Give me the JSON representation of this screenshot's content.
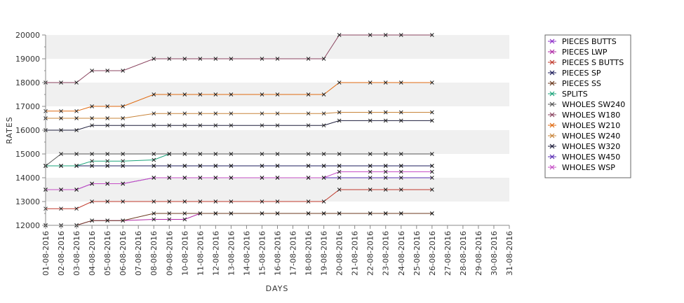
{
  "chart_data": {
    "type": "line",
    "xlabel": "DAYS",
    "ylabel": "RATES",
    "ylim": [
      12000,
      20000
    ],
    "yticks": [
      12000,
      13000,
      14000,
      15000,
      16000,
      17000,
      18000,
      19000,
      20000
    ],
    "ytick_labels": [
      "12000",
      "13000",
      "14000",
      "15000",
      "16000",
      "17000",
      "18000",
      "19000",
      "20000"
    ],
    "x_categories": [
      "01-08-2016",
      "02-08-2016",
      "03-08-2016",
      "04-08-2016",
      "05-08-2016",
      "06-08-2016",
      "07-08-2016",
      "08-08-2016",
      "09-08-2016",
      "10-08-2016",
      "11-08-2016",
      "12-08-2016",
      "13-08-2016",
      "14-08-2016",
      "15-08-2016",
      "16-08-2016",
      "17-08-2016",
      "18-08-2016",
      "19-08-2016",
      "20-08-2016",
      "21-08-2016",
      "22-08-2016",
      "23-08-2016",
      "24-08-2016",
      "25-08-2016",
      "26-08-2016",
      "27-08-2016",
      "28-08-2016",
      "29-08-2016",
      "30-08-2016",
      "31-08-2016"
    ],
    "grid": "alternating horizontal bands",
    "legend_position": "right",
    "series": [
      {
        "name": "PIECES BUTTS",
        "color": "#8e2fc9",
        "x": [
          "01-08-2016",
          "02-08-2016",
          "03-08-2016",
          "04-08-2016",
          "05-08-2016",
          "06-08-2016",
          "08-08-2016",
          "09-08-2016",
          "10-08-2016",
          "11-08-2016",
          "12-08-2016",
          "13-08-2016",
          "15-08-2016",
          "16-08-2016",
          "18-08-2016",
          "19-08-2016",
          "20-08-2016",
          "22-08-2016",
          "23-08-2016",
          "24-08-2016",
          "26-08-2016"
        ],
        "values": [
          14500,
          14500,
          14500,
          14500,
          14500,
          14500,
          14500,
          14500,
          14500,
          14500,
          14500,
          14500,
          14500,
          14500,
          14500,
          14500,
          14500,
          14500,
          14500,
          14500,
          14500
        ]
      },
      {
        "name": "PIECES LWP",
        "color": "#b02aa6",
        "x": [
          "01-08-2016",
          "02-08-2016",
          "03-08-2016",
          "04-08-2016",
          "05-08-2016",
          "06-08-2016",
          "08-08-2016",
          "09-08-2016",
          "10-08-2016",
          "11-08-2016",
          "12-08-2016",
          "13-08-2016",
          "15-08-2016",
          "16-08-2016",
          "18-08-2016",
          "19-08-2016",
          "20-08-2016",
          "22-08-2016",
          "23-08-2016",
          "24-08-2016",
          "26-08-2016"
        ],
        "values": [
          12000,
          12000,
          12000,
          12200,
          12200,
          12200,
          12250,
          12250,
          12250,
          12500,
          12500,
          12500,
          12500,
          12500,
          12500,
          12500,
          12500,
          12500,
          12500,
          12500,
          12500
        ]
      },
      {
        "name": "PIECES S BUTTS",
        "color": "#c0392b",
        "x": [
          "01-08-2016",
          "02-08-2016",
          "03-08-2016",
          "04-08-2016",
          "05-08-2016",
          "06-08-2016",
          "08-08-2016",
          "09-08-2016",
          "10-08-2016",
          "11-08-2016",
          "12-08-2016",
          "13-08-2016",
          "15-08-2016",
          "16-08-2016",
          "18-08-2016",
          "19-08-2016",
          "20-08-2016",
          "22-08-2016",
          "23-08-2016",
          "24-08-2016",
          "26-08-2016"
        ],
        "values": [
          12700,
          12700,
          12700,
          13000,
          13000,
          13000,
          13000,
          13000,
          13000,
          13000,
          13000,
          13000,
          13000,
          13000,
          13000,
          13000,
          13500,
          13500,
          13500,
          13500,
          13500
        ]
      },
      {
        "name": "PIECES SP",
        "color": "#1e1e5c",
        "x": [
          "01-08-2016",
          "02-08-2016",
          "03-08-2016",
          "04-08-2016",
          "05-08-2016",
          "06-08-2016",
          "08-08-2016",
          "09-08-2016",
          "10-08-2016",
          "11-08-2016",
          "12-08-2016",
          "13-08-2016",
          "15-08-2016",
          "16-08-2016",
          "18-08-2016",
          "19-08-2016",
          "20-08-2016",
          "22-08-2016",
          "23-08-2016",
          "24-08-2016",
          "26-08-2016"
        ],
        "values": [
          14500,
          14500,
          14500,
          14500,
          14500,
          14500,
          14500,
          14500,
          14500,
          14500,
          14500,
          14500,
          14500,
          14500,
          14500,
          14500,
          14500,
          14500,
          14500,
          14500,
          14500
        ]
      },
      {
        "name": "PIECES SS",
        "color": "#6b3a1f",
        "x": [
          "01-08-2016",
          "02-08-2016",
          "03-08-2016",
          "04-08-2016",
          "05-08-2016",
          "06-08-2016",
          "08-08-2016",
          "09-08-2016",
          "10-08-2016",
          "11-08-2016",
          "12-08-2016",
          "13-08-2016",
          "15-08-2016",
          "16-08-2016",
          "18-08-2016",
          "19-08-2016",
          "20-08-2016",
          "22-08-2016",
          "23-08-2016",
          "24-08-2016",
          "26-08-2016"
        ],
        "values": [
          12000,
          12000,
          12000,
          12200,
          12200,
          12200,
          12500,
          12500,
          12500,
          12500,
          12500,
          12500,
          12500,
          12500,
          12500,
          12500,
          12500,
          12500,
          12500,
          12500,
          12500
        ]
      },
      {
        "name": "SPLITS",
        "color": "#1aa37a",
        "x": [
          "01-08-2016",
          "02-08-2016",
          "03-08-2016",
          "04-08-2016",
          "05-08-2016",
          "06-08-2016",
          "08-08-2016",
          "09-08-2016"
        ],
        "values": [
          14500,
          14500,
          14500,
          14700,
          14700,
          14700,
          14750,
          15000
        ]
      },
      {
        "name": "WHOLES SW240",
        "color": "#555555",
        "x": [
          "01-08-2016",
          "02-08-2016",
          "03-08-2016",
          "04-08-2016",
          "05-08-2016",
          "06-08-2016",
          "08-08-2016",
          "09-08-2016",
          "10-08-2016",
          "11-08-2016",
          "12-08-2016",
          "13-08-2016",
          "15-08-2016",
          "16-08-2016",
          "18-08-2016",
          "19-08-2016",
          "20-08-2016",
          "22-08-2016",
          "23-08-2016",
          "24-08-2016",
          "26-08-2016"
        ],
        "values": [
          14500,
          15000,
          15000,
          15000,
          15000,
          15000,
          15000,
          15000,
          15000,
          15000,
          15000,
          15000,
          15000,
          15000,
          15000,
          15000,
          15000,
          15000,
          15000,
          15000,
          15000
        ]
      },
      {
        "name": "WHOLES W180",
        "color": "#8b4560",
        "x": [
          "01-08-2016",
          "02-08-2016",
          "03-08-2016",
          "04-08-2016",
          "05-08-2016",
          "06-08-2016",
          "08-08-2016",
          "09-08-2016",
          "10-08-2016",
          "11-08-2016",
          "12-08-2016",
          "13-08-2016",
          "15-08-2016",
          "16-08-2016",
          "18-08-2016",
          "19-08-2016",
          "20-08-2016",
          "22-08-2016",
          "23-08-2016",
          "24-08-2016",
          "26-08-2016"
        ],
        "values": [
          18000,
          18000,
          18000,
          18500,
          18500,
          18500,
          19000,
          19000,
          19000,
          19000,
          19000,
          19000,
          19000,
          19000,
          19000,
          19000,
          20000,
          20000,
          20000,
          20000,
          20000
        ]
      },
      {
        "name": "WHOLES W210",
        "color": "#e06a10",
        "x": [
          "01-08-2016",
          "02-08-2016",
          "03-08-2016",
          "04-08-2016",
          "05-08-2016",
          "06-08-2016",
          "08-08-2016",
          "09-08-2016",
          "10-08-2016",
          "11-08-2016",
          "12-08-2016",
          "13-08-2016",
          "15-08-2016",
          "16-08-2016",
          "18-08-2016",
          "19-08-2016",
          "20-08-2016",
          "22-08-2016",
          "23-08-2016",
          "24-08-2016",
          "26-08-2016"
        ],
        "values": [
          16800,
          16800,
          16800,
          17000,
          17000,
          17000,
          17500,
          17500,
          17500,
          17500,
          17500,
          17500,
          17500,
          17500,
          17500,
          17500,
          18000,
          18000,
          18000,
          18000,
          18000
        ]
      },
      {
        "name": "WHOLES W240",
        "color": "#c8843a",
        "x": [
          "01-08-2016",
          "02-08-2016",
          "03-08-2016",
          "04-08-2016",
          "05-08-2016",
          "06-08-2016",
          "08-08-2016",
          "09-08-2016",
          "10-08-2016",
          "11-08-2016",
          "12-08-2016",
          "13-08-2016",
          "15-08-2016",
          "16-08-2016",
          "18-08-2016",
          "19-08-2016",
          "20-08-2016",
          "22-08-2016",
          "23-08-2016",
          "24-08-2016",
          "26-08-2016"
        ],
        "values": [
          16500,
          16500,
          16500,
          16500,
          16500,
          16500,
          16700,
          16700,
          16700,
          16700,
          16700,
          16700,
          16700,
          16700,
          16700,
          16700,
          16750,
          16750,
          16750,
          16750,
          16750
        ]
      },
      {
        "name": "WHOLES W320",
        "color": "#1e1e3c",
        "x": [
          "01-08-2016",
          "02-08-2016",
          "03-08-2016",
          "04-08-2016",
          "05-08-2016",
          "06-08-2016",
          "08-08-2016",
          "09-08-2016",
          "10-08-2016",
          "11-08-2016",
          "12-08-2016",
          "13-08-2016",
          "15-08-2016",
          "16-08-2016",
          "18-08-2016",
          "19-08-2016",
          "20-08-2016",
          "22-08-2016",
          "23-08-2016",
          "24-08-2016",
          "26-08-2016"
        ],
        "values": [
          16000,
          16000,
          16000,
          16200,
          16200,
          16200,
          16200,
          16200,
          16200,
          16200,
          16200,
          16200,
          16200,
          16200,
          16200,
          16200,
          16400,
          16400,
          16400,
          16400,
          16400
        ]
      },
      {
        "name": "WHOLES W450",
        "color": "#5a2fb5",
        "x": [
          "01-08-2016",
          "02-08-2016",
          "03-08-2016",
          "04-08-2016",
          "05-08-2016",
          "06-08-2016",
          "08-08-2016",
          "09-08-2016",
          "10-08-2016",
          "11-08-2016",
          "12-08-2016",
          "13-08-2016",
          "15-08-2016",
          "16-08-2016",
          "18-08-2016",
          "19-08-2016",
          "20-08-2016",
          "22-08-2016",
          "23-08-2016",
          "24-08-2016",
          "26-08-2016"
        ],
        "values": [
          13500,
          13500,
          13500,
          13750,
          13750,
          13750,
          14000,
          14000,
          14000,
          14000,
          14000,
          14000,
          14000,
          14000,
          14000,
          14000,
          14000,
          14000,
          14000,
          14000,
          14000
        ]
      },
      {
        "name": "WHOLES WSP",
        "color": "#c64fc6",
        "x": [
          "01-08-2016",
          "02-08-2016",
          "03-08-2016",
          "04-08-2016",
          "05-08-2016",
          "06-08-2016",
          "08-08-2016",
          "09-08-2016",
          "10-08-2016",
          "11-08-2016",
          "12-08-2016",
          "13-08-2016",
          "15-08-2016",
          "16-08-2016",
          "18-08-2016",
          "19-08-2016",
          "20-08-2016",
          "22-08-2016",
          "23-08-2016",
          "24-08-2016",
          "26-08-2016"
        ],
        "values": [
          13500,
          13500,
          13500,
          13750,
          13750,
          13750,
          14000,
          14000,
          14000,
          14000,
          14000,
          14000,
          14000,
          14000,
          14000,
          14000,
          14250,
          14250,
          14250,
          14250,
          14250
        ]
      }
    ]
  }
}
